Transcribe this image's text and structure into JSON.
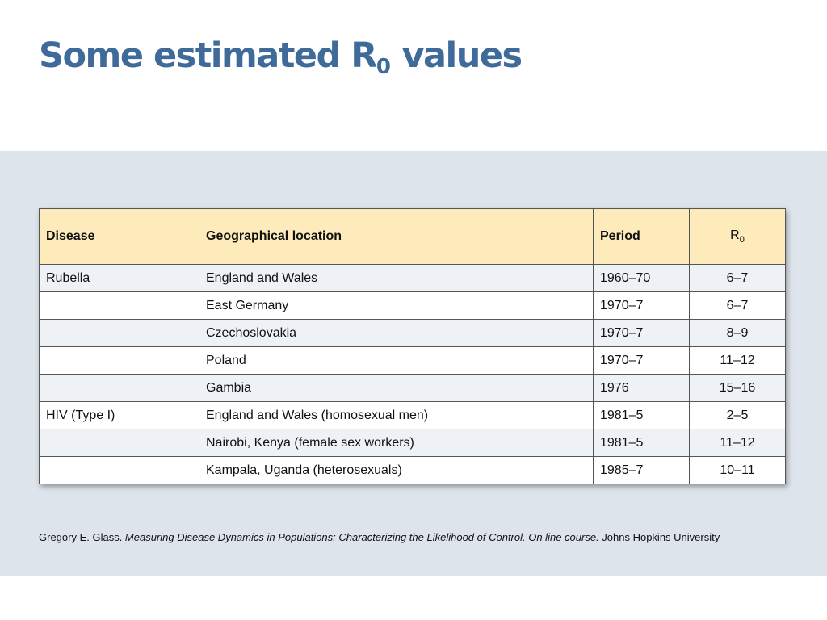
{
  "title": {
    "main": "Some estimated R",
    "sub": "0",
    "rest": " values"
  },
  "table": {
    "headers": {
      "disease": "Disease",
      "location": "Geographical location",
      "period": "Period",
      "r0_main": "R",
      "r0_sub": "0"
    },
    "rows": [
      {
        "disease": "Rubella",
        "location": "England and Wales",
        "period": "1960–70",
        "r0": "6–7"
      },
      {
        "disease": "",
        "location": "East Germany",
        "period": "1970–7",
        "r0": "6–7"
      },
      {
        "disease": "",
        "location": "Czechoslovakia",
        "period": "1970–7",
        "r0": "8–9"
      },
      {
        "disease": "",
        "location": "Poland",
        "period": "1970–7",
        "r0": "11–12"
      },
      {
        "disease": "",
        "location": "Gambia",
        "period": "1976",
        "r0": "15–16"
      },
      {
        "disease": "HIV (Type I)",
        "location": "England and Wales (homosexual men)",
        "period": "1981–5",
        "r0": "2–5"
      },
      {
        "disease": "",
        "location": "Nairobi, Kenya (female sex workers)",
        "period": "1981–5",
        "r0": "11–12"
      },
      {
        "disease": "",
        "location": "Kampala, Uganda (heterosexuals)",
        "period": "1985–7",
        "r0": "10–11"
      }
    ]
  },
  "citation": {
    "author": "Gregory E. Glass. ",
    "work": "Measuring Disease Dynamics in Populations: Characterizing the Likelihood of Control. On line course.",
    "publisher": " Johns Hopkins University"
  }
}
